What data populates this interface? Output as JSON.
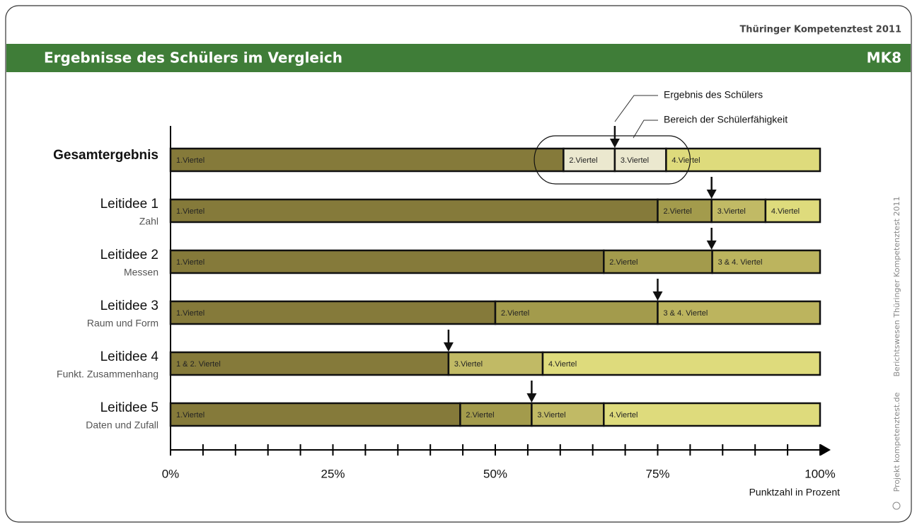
{
  "header": {
    "brand": "Thüringer Kompetenztest 2011",
    "title": "Ergebnisse des Schülers im Vergleich",
    "code": "MK8"
  },
  "side_texts": [
    "Berichtswesen Thüringer Kompetenztest 2011",
    "Projekt kompetenztest.de"
  ],
  "chart_data": {
    "type": "stacked-bar",
    "x_label": "Punktzahl in Prozent",
    "annotations": [
      "Ergebnis des Schülers",
      "Bereich der Schülerfähigkeit"
    ],
    "xlim": [
      0,
      100
    ],
    "xticks": [
      {
        "value": 0,
        "label": "0%"
      },
      {
        "value": 25,
        "label": "25%"
      },
      {
        "value": 50,
        "label": "50%"
      },
      {
        "value": 75,
        "label": "75%"
      },
      {
        "value": 100,
        "label": "100%"
      }
    ],
    "minor_ticks": [
      5,
      10,
      15,
      20,
      25,
      30,
      35,
      40,
      45,
      50,
      55,
      60,
      65,
      70,
      75,
      80,
      85,
      90,
      95
    ],
    "rows": [
      {
        "name": "Gesamtergebnis",
        "result": 68.4,
        "range": [
          56,
          80
        ],
        "segments": [
          {
            "label": "1.Viertel",
            "value": 60.5,
            "color": "#857a3a"
          },
          {
            "label": "2.Viertel",
            "value": 7.9,
            "color": "#ebe8cf"
          },
          {
            "label": "3.Viertel",
            "value": 7.9,
            "color": "#ebe8cf"
          },
          {
            "label": "4.Viertel",
            "value": 23.7,
            "color": "#dedb7c"
          }
        ]
      },
      {
        "name": "Leitidee 1",
        "subtitle": "Zahl",
        "result": 83.3,
        "segments": [
          {
            "label": "1.Viertel",
            "value": 75,
            "color": "#857a3a"
          },
          {
            "label": "2.Viertel",
            "value": 8.3,
            "color": "#a39b4c"
          },
          {
            "label": "3.Viertel",
            "value": 8.3,
            "color": "#c1ba65"
          },
          {
            "label": "4.Viertel",
            "value": 8.4,
            "color": "#dedb7c"
          }
        ]
      },
      {
        "name": "Leitidee 2",
        "subtitle": "Messen",
        "result": 83.3,
        "segments": [
          {
            "label": "1.Viertel",
            "value": 66.7,
            "color": "#857a3a"
          },
          {
            "label": "2.Viertel",
            "value": 16.7,
            "color": "#a39b4c"
          },
          {
            "label": "3 & 4. Viertel",
            "value": 16.6,
            "color": "#bcb45e"
          }
        ]
      },
      {
        "name": "Leitidee 3",
        "subtitle": "Raum und Form",
        "result": 75,
        "segments": [
          {
            "label": "1.Viertel",
            "value": 50,
            "color": "#857a3a"
          },
          {
            "label": "2.Viertel",
            "value": 25,
            "color": "#a39b4c"
          },
          {
            "label": "3 & 4. Viertel",
            "value": 25,
            "color": "#bcb45e"
          }
        ]
      },
      {
        "name": "Leitidee 4",
        "subtitle": "Funkt. Zusammenhang",
        "result": 42.8,
        "segments": [
          {
            "label": "1 & 2. Viertel",
            "value": 42.8,
            "color": "#857a3a"
          },
          {
            "label": "3.Viertel",
            "value": 14.5,
            "color": "#c1ba65"
          },
          {
            "label": "4.Viertel",
            "value": 42.7,
            "color": "#dedb7c"
          }
        ]
      },
      {
        "name": "Leitidee 5",
        "subtitle": "Daten und Zufall",
        "result": 55.6,
        "segments": [
          {
            "label": "1.Viertel",
            "value": 44.6,
            "color": "#857a3a"
          },
          {
            "label": "2.Viertel",
            "value": 11,
            "color": "#a39b4c"
          },
          {
            "label": "3.Viertel",
            "value": 11.1,
            "color": "#c1ba65"
          },
          {
            "label": "4.Viertel",
            "value": 33.3,
            "color": "#dedb7c"
          }
        ]
      }
    ]
  }
}
